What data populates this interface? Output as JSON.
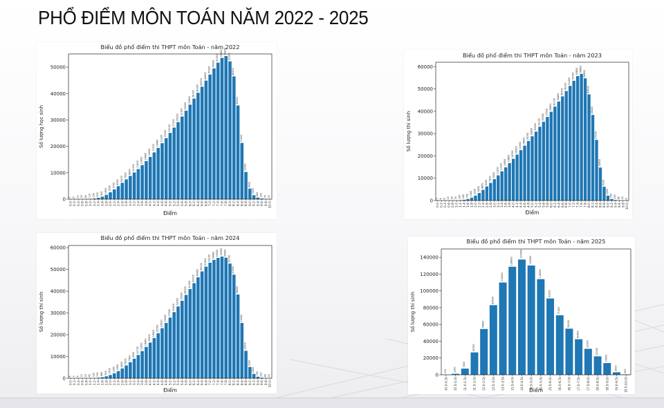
{
  "page": {
    "title": "PHỔ ĐIỂM MÔN TOÁN NĂM 2022 - 2025"
  },
  "colors": {
    "bar": "#1f77b4",
    "axis": "#222222",
    "text": "#222222"
  },
  "chart_data": [
    {
      "id": "2022",
      "type": "bar",
      "title": "Biểu đồ phổ điểm thi THPT môn Toán - năm 2022",
      "xlabel": "Điểm",
      "ylabel": "Số lượng học sinh",
      "ylim": [
        0,
        55000
      ],
      "yticks": [
        0,
        10000,
        20000,
        30000,
        40000,
        50000
      ],
      "categories": [
        "0.0",
        "0.2",
        "0.4",
        "0.6",
        "0.8",
        "1.0",
        "1.2",
        "1.4",
        "1.6",
        "1.8",
        "2.0",
        "2.2",
        "2.4",
        "2.6",
        "2.8",
        "3.0",
        "3.2",
        "3.4",
        "3.6",
        "3.8",
        "4.0",
        "4.2",
        "4.4",
        "4.6",
        "4.8",
        "5.0",
        "5.2",
        "5.4",
        "5.6",
        "5.8",
        "6.0",
        "6.2",
        "6.4",
        "6.6",
        "6.8",
        "7.0",
        "7.2",
        "7.4",
        "7.6",
        "7.8",
        "8.0",
        "8.2",
        "8.4",
        "8.6",
        "8.8",
        "9.0",
        "9.2",
        "9.4",
        "9.6",
        "9.8",
        "10.0"
      ],
      "values": [
        7,
        6,
        12,
        20,
        45,
        110,
        250,
        500,
        950,
        1650,
        2600,
        3700,
        4900,
        6200,
        7500,
        8800,
        10100,
        11400,
        12900,
        14400,
        16000,
        17700,
        19400,
        21200,
        23100,
        25100,
        27100,
        29200,
        31300,
        33500,
        35800,
        38100,
        40300,
        42600,
        44900,
        47200,
        49500,
        51700,
        53500,
        54200,
        52200,
        46500,
        35500,
        21300,
        10300,
        4000,
        1500,
        600,
        250,
        70,
        15
      ],
      "grid": false,
      "legend": "none"
    },
    {
      "id": "2023",
      "type": "bar",
      "title": "Biểu đồ phổ điểm thi THPT môn Toán - năm 2023",
      "xlabel": "Điểm",
      "ylabel": "Số lượng thí sinh",
      "ylim": [
        0,
        62000
      ],
      "yticks": [
        0,
        10000,
        20000,
        30000,
        40000,
        50000,
        60000
      ],
      "categories": [
        "0.0",
        "0.2",
        "0.4",
        "0.6",
        "0.8",
        "1.0",
        "1.2",
        "1.4",
        "1.6",
        "1.8",
        "2.0",
        "2.2",
        "2.4",
        "2.6",
        "2.8",
        "3.0",
        "3.2",
        "3.4",
        "3.6",
        "3.8",
        "4.0",
        "4.2",
        "4.4",
        "4.6",
        "4.8",
        "5.0",
        "5.2",
        "5.4",
        "5.6",
        "5.8",
        "6.0",
        "6.2",
        "6.4",
        "6.6",
        "6.8",
        "7.0",
        "7.2",
        "7.4",
        "7.6",
        "7.8",
        "8.0",
        "8.2",
        "8.4",
        "8.6",
        "8.8",
        "9.0",
        "9.2",
        "9.4",
        "9.6",
        "9.8",
        "10.0"
      ],
      "values": [
        5,
        4,
        8,
        15,
        30,
        70,
        160,
        350,
        700,
        1300,
        2200,
        3400,
        4800,
        6300,
        7900,
        9600,
        11300,
        13100,
        14900,
        16800,
        18700,
        20600,
        22600,
        24600,
        26700,
        28800,
        30900,
        33100,
        35300,
        37500,
        39800,
        42100,
        44400,
        46700,
        49100,
        51400,
        53700,
        55800,
        56800,
        54800,
        47600,
        38400,
        27200,
        14800,
        6200,
        2200,
        700,
        230,
        80,
        25,
        8
      ],
      "grid": false,
      "legend": "none"
    },
    {
      "id": "2024",
      "type": "bar",
      "title": "Biểu đồ phổ điểm thi THPT môn Toán - năm 2024",
      "xlabel": "Điểm",
      "ylabel": "Số lượng thí sinh",
      "ylim": [
        0,
        61000
      ],
      "yticks": [
        0,
        10000,
        20000,
        30000,
        40000,
        50000,
        60000
      ],
      "categories": [
        "0.0",
        "0.2",
        "0.4",
        "0.6",
        "0.8",
        "1.0",
        "1.2",
        "1.4",
        "1.6",
        "1.8",
        "2.0",
        "2.2",
        "2.4",
        "2.6",
        "2.8",
        "3.0",
        "3.2",
        "3.4",
        "3.6",
        "3.8",
        "4.0",
        "4.2",
        "4.4",
        "4.6",
        "4.8",
        "5.0",
        "5.2",
        "5.4",
        "5.6",
        "5.8",
        "6.0",
        "6.2",
        "6.4",
        "6.6",
        "6.8",
        "7.0",
        "7.2",
        "7.4",
        "7.6",
        "7.8",
        "8.0",
        "8.2",
        "8.4",
        "8.6",
        "8.8",
        "9.0",
        "9.2",
        "9.4",
        "9.6",
        "9.8",
        "10.0"
      ],
      "values": [
        4,
        3,
        6,
        10,
        20,
        45,
        100,
        230,
        480,
        900,
        1500,
        2300,
        3300,
        4500,
        5900,
        7400,
        9000,
        10700,
        12500,
        14400,
        16400,
        18500,
        20700,
        23000,
        25400,
        27900,
        30400,
        33000,
        35600,
        38300,
        41000,
        43700,
        46400,
        49100,
        51300,
        53100,
        54400,
        55300,
        55900,
        55400,
        52700,
        47600,
        38500,
        25400,
        12600,
        5200,
        2000,
        700,
        250,
        80,
        20
      ],
      "grid": false,
      "legend": "none"
    },
    {
      "id": "2025",
      "type": "bar",
      "title": "Biểu đồ phổ điểm thi THPT môn Toán - năm 2025",
      "xlabel": "Điểm",
      "ylabel": "Số lượng thí sinh",
      "ylim": [
        0,
        150000
      ],
      "yticks": [
        0,
        20000,
        40000,
        60000,
        80000,
        100000,
        120000,
        140000
      ],
      "categories": [
        "[0.0-0.5)",
        "[0.5-1.0)",
        "[1.0-1.5)",
        "[1.5-2.0)",
        "[2.0-2.5)",
        "[2.5-3.0)",
        "[3.0-3.5)",
        "[3.5-4.0)",
        "[4.0-4.5)",
        "[4.5-5.0)",
        "[5.0-5.5)",
        "[5.5-6.0)",
        "[6.0-6.5)",
        "[6.5-7.0)",
        "[7.0-7.5)",
        "[7.5-8.0)",
        "[8.0-8.5)",
        "[8.5-9.0)",
        "[9.0-9.5)",
        "[9.5-10.0]"
      ],
      "values": [
        125,
        1200,
        7400,
        26700,
        54600,
        83000,
        110000,
        128800,
        137400,
        130300,
        114000,
        91000,
        71000,
        55000,
        42400,
        31000,
        22000,
        14000,
        3000,
        500
      ],
      "grid": false,
      "legend": "none"
    }
  ]
}
